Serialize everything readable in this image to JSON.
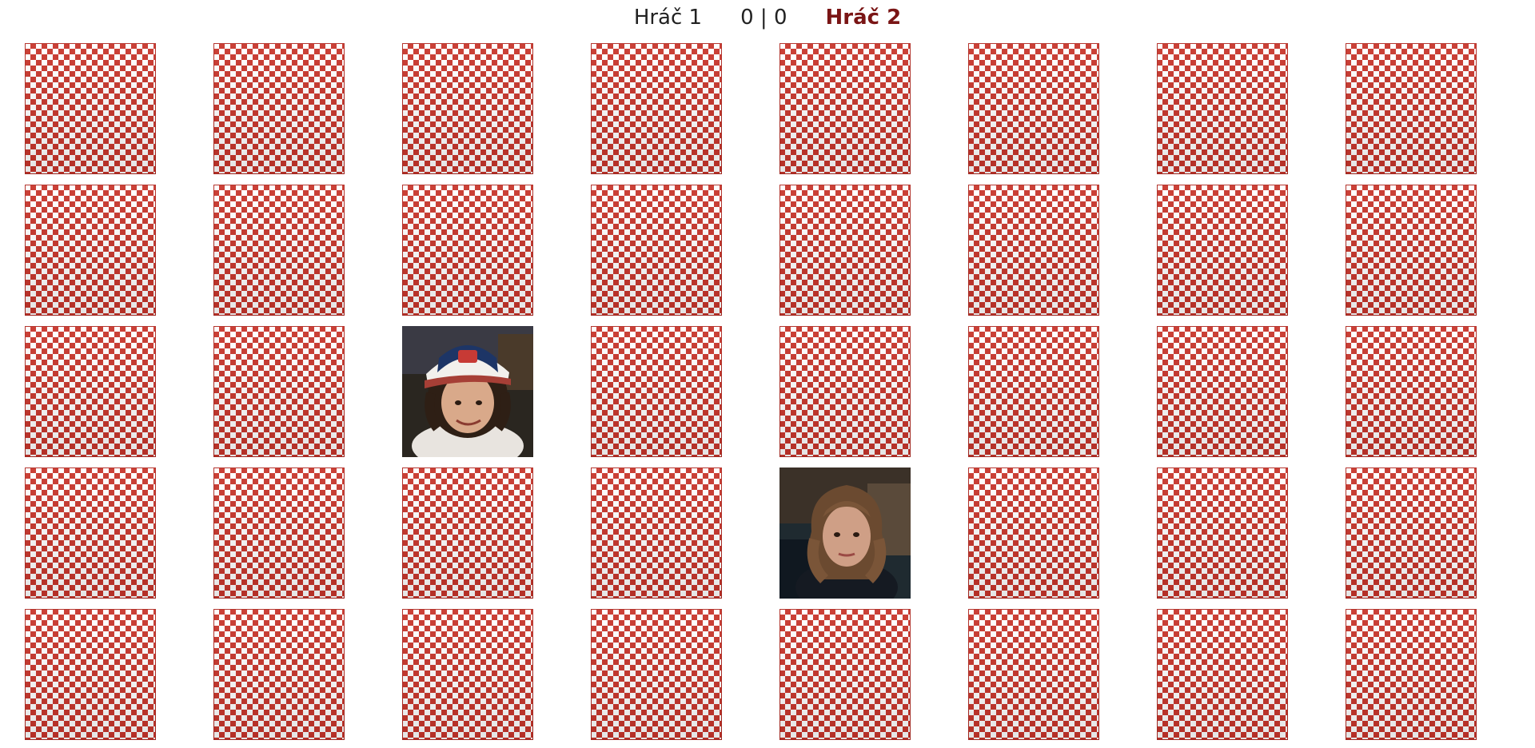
{
  "scoreboard": {
    "player1_label": "Hráč 1",
    "score_player1": "0",
    "separator": "|",
    "score_player2": "0",
    "player2_label": "Hráč 2",
    "active_player": 2
  },
  "board": {
    "rows": 5,
    "columns": 8,
    "card_back_pattern": "red-white-diamond",
    "card_back_color": "#c8352b",
    "active_color": "#7a1515",
    "revealed_cards": [
      {
        "row": 3,
        "column": 3,
        "image": "boy-with-trucker-cap-portrait"
      },
      {
        "row": 4,
        "column": 5,
        "image": "woman-with-wavy-hair-portrait"
      }
    ]
  }
}
